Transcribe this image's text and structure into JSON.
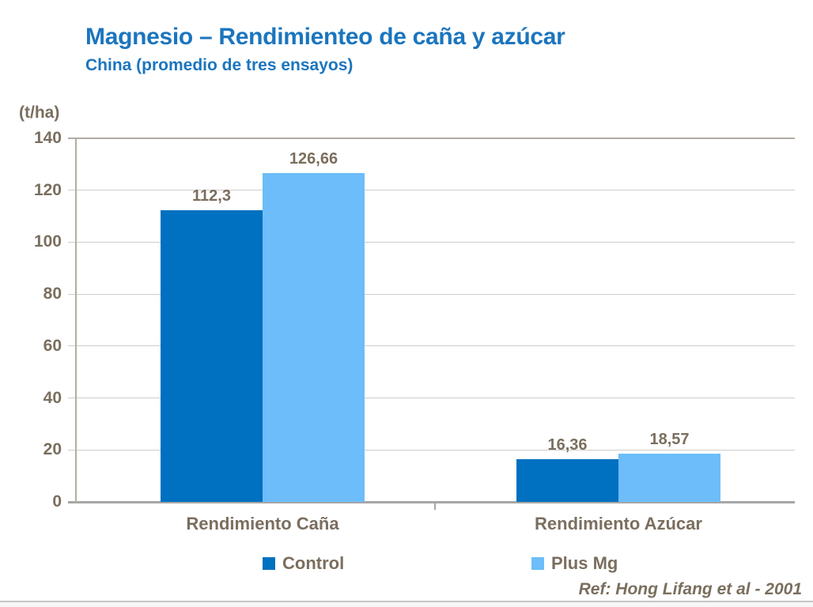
{
  "slide": {
    "title": "Magnesio – Rendimienteo de caña y azúcar",
    "subtitle": "China (promedio de tres ensayos)",
    "reference": "Ref: Hong Lifang et al - 2001"
  },
  "chart_data": {
    "type": "bar",
    "title": "Magnesio – Rendimienteo de caña y azúcar",
    "subtitle": "China (promedio de tres ensayos)",
    "unit_label": "(t/ha)",
    "ylabel": "(t/ha)",
    "xlabel": "",
    "categories": [
      "Rendimiento Caña",
      "Rendimiento Azúcar"
    ],
    "series": [
      {
        "name": "Control",
        "color": "#0070C0",
        "values": [
          112.3,
          16.36
        ],
        "labels": [
          "112,3",
          "16,36"
        ]
      },
      {
        "name": "Plus Mg",
        "color": "#6CBDF9",
        "values": [
          126.66,
          18.57
        ],
        "labels": [
          "126,66",
          "18,57"
        ]
      }
    ],
    "ylim": [
      0,
      140
    ],
    "yticks": [
      0,
      20,
      40,
      60,
      80,
      100,
      120,
      140
    ],
    "grid": true,
    "legend_position": "bottom"
  },
  "colors": {
    "title": "#1B75BE",
    "text": "#7A6E5E",
    "control_bar": "#0070C0",
    "plus_mg_bar": "#6CBDF9",
    "gridline": "#CDCDCD",
    "plot_border": "#B3ACA2",
    "axis": "#A6A6A6"
  }
}
